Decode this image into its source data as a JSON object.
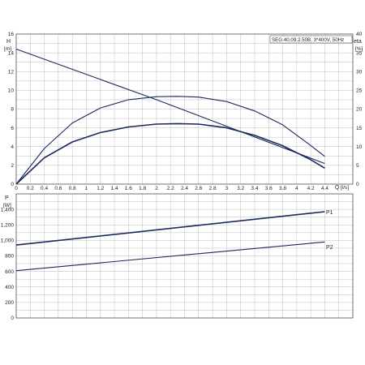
{
  "chart_data": [
    {
      "type": "line",
      "title": "SEG.40.09.2.50B, 3*400V, 50Hz",
      "xlabel": "Q",
      "xunit": "[l/s]",
      "ylabel": "H",
      "yunit": "[m]",
      "y2label": "eta",
      "y2unit": "[%]",
      "xlim": [
        0,
        4.8
      ],
      "ylim": [
        0,
        16
      ],
      "y2lim": [
        0,
        40
      ],
      "grid": true,
      "x_ticks": [
        "0",
        "0.2",
        "0.4",
        "0.6",
        "0.8",
        "1",
        "1.2",
        "1.4",
        "1.6",
        "1.8",
        "2",
        "2.2",
        "2.4",
        "2.6",
        "2.8",
        "3",
        "3.2",
        "3.4",
        "3.6",
        "3.8",
        "4",
        "4.2",
        "4.4"
      ],
      "y_ticks": [
        "0",
        "2",
        "4",
        "6",
        "8",
        "10",
        "12",
        "14",
        "16"
      ],
      "y2_ticks": [
        "0",
        "5",
        "10",
        "15",
        "20",
        "25",
        "30",
        "35",
        "40"
      ],
      "series": [
        {
          "axis": "y",
          "x": [
            0,
            2.0,
            4.4
          ],
          "y": [
            14.4,
            9.0,
            2.2
          ]
        },
        {
          "axis": "y2",
          "x": [
            0,
            0.4,
            0.8,
            1.2,
            1.6,
            2.0,
            2.3,
            2.6,
            3.0,
            3.4,
            3.8,
            4.2,
            4.4
          ],
          "y": [
            0,
            9.5,
            16.3,
            20.3,
            22.5,
            23.3,
            23.4,
            23.2,
            22.0,
            19.5,
            15.8,
            10.3,
            7.4
          ]
        },
        {
          "axis": "y",
          "x": [
            0,
            0.4,
            0.8,
            1.2,
            1.6,
            2.0,
            2.3,
            2.6,
            3.0,
            3.4,
            3.8,
            4.2,
            4.4
          ],
          "y": [
            0,
            2.8,
            4.5,
            5.5,
            6.1,
            6.4,
            6.45,
            6.4,
            6.0,
            5.2,
            4.1,
            2.6,
            1.7
          ]
        }
      ]
    },
    {
      "type": "line",
      "xlim": [
        0,
        4.8
      ],
      "ylabel": "P",
      "yunit": "[W]",
      "ylim": [
        0,
        1600
      ],
      "grid": true,
      "y_ticks": [
        "0",
        "200",
        "400",
        "600",
        "800",
        "1,000",
        "1,200",
        "1,400"
      ],
      "series": [
        {
          "name": "P1",
          "x": [
            0,
            4.4
          ],
          "y": [
            940,
            1370
          ]
        },
        {
          "name": "P2",
          "x": [
            0,
            4.4
          ],
          "y": [
            610,
            980
          ]
        }
      ]
    }
  ],
  "colors": {
    "curve": "#1a2a5e",
    "grid": "#bdbdbd",
    "frame": "#555555"
  }
}
